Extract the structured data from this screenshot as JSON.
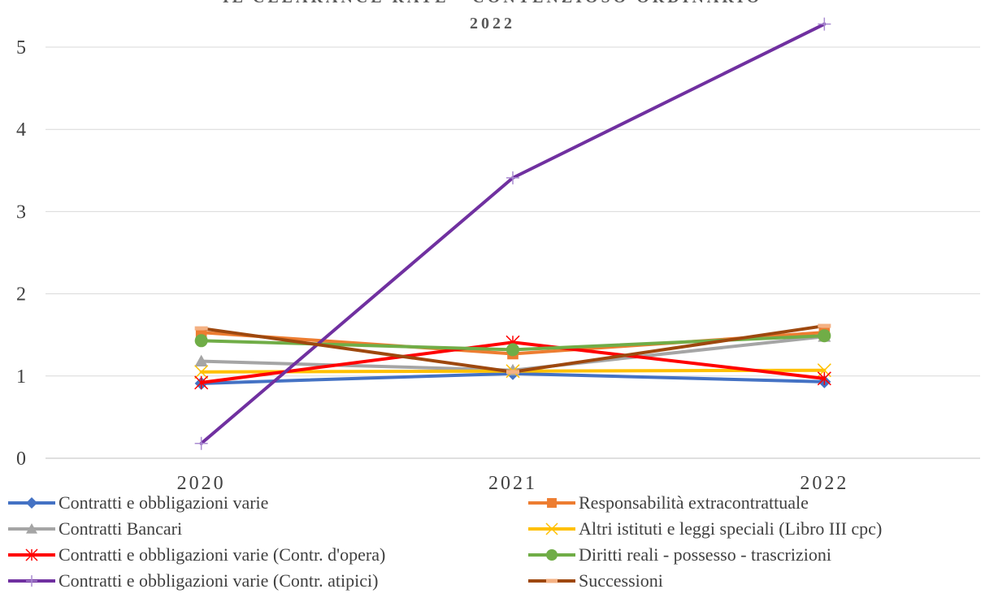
{
  "chart_data": {
    "type": "line",
    "title_line1": "IL CLEARANCE RATE - CONTENZIOSO ORDINARIO",
    "title_line2": "2022",
    "x": [
      "2020",
      "2021",
      "2022"
    ],
    "yticks": [
      "0",
      "1",
      "2",
      "3",
      "4",
      "5"
    ],
    "ylim": [
      0,
      5.3
    ],
    "grid": true,
    "legend_position": "bottom",
    "series": [
      {
        "name": "Contratti e obbligazioni varie",
        "values": [
          0.91,
          1.03,
          0.93
        ],
        "color": "#4472C4",
        "marker": "diamond"
      },
      {
        "name": "Responsabilità extracontrattuale",
        "values": [
          1.53,
          1.27,
          1.53
        ],
        "color": "#ED7D31",
        "marker": "square"
      },
      {
        "name": "Contratti Bancari",
        "values": [
          1.18,
          1.07,
          1.48
        ],
        "color": "#A5A5A5",
        "marker": "triangle"
      },
      {
        "name": "Altri istituti e leggi speciali (Libro III cpc)",
        "values": [
          1.05,
          1.06,
          1.07
        ],
        "color": "#FFC000",
        "marker": "x"
      },
      {
        "name": "Contratti e obbligazioni varie (Contr. d'opera)",
        "values": [
          0.92,
          1.41,
          0.97
        ],
        "color": "#FF0000",
        "marker": "asterisk"
      },
      {
        "name": "Diritti reali - possesso - trascrizioni",
        "values": [
          1.43,
          1.32,
          1.49
        ],
        "color": "#70AD47",
        "marker": "circle"
      },
      {
        "name": "Contratti e obbligazioni varie (Contr. atipici)",
        "values": [
          0.18,
          3.41,
          5.28
        ],
        "color": "#7030A0",
        "marker": "plus"
      },
      {
        "name": "Successioni",
        "values": [
          1.58,
          1.05,
          1.61
        ],
        "color": "#9E480E",
        "marker": "dash"
      }
    ]
  }
}
